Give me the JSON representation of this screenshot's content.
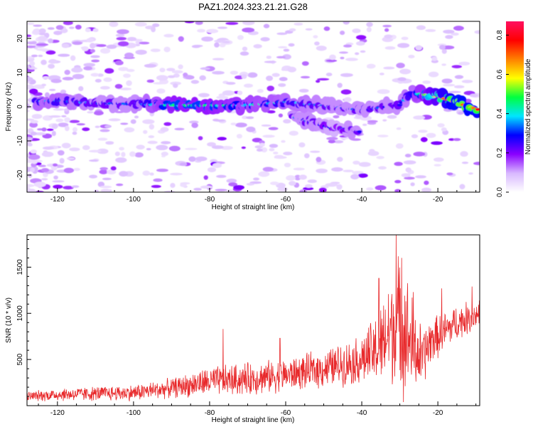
{
  "title": "PAZ1.2024.323.21.21.G28",
  "chart_data": [
    {
      "type": "heatmap",
      "xlabel": "Height of straight line (km)",
      "ylabel": "Frequency (Hz)",
      "xlim": [
        -128,
        -9
      ],
      "ylim": [
        -25,
        25
      ],
      "x_ticks": [
        -120,
        -100,
        -80,
        -60,
        -40,
        -20
      ],
      "y_ticks": [
        -20,
        -10,
        0,
        10,
        20
      ],
      "colorbar": {
        "label": "Normalized spectral amplitude",
        "range": [
          0,
          0.87
        ],
        "ticks": [
          0.0,
          0.2,
          0.4,
          0.6,
          0.8
        ],
        "colors": [
          "#ffffff",
          "#d8b8ff",
          "#8a00ff",
          "#0000ff",
          "#00e5ff",
          "#00ff40",
          "#ffff00",
          "#ff8000",
          "#ff0000",
          "#ff1060"
        ]
      },
      "ridges": [
        {
          "points": [
            [
              -126,
              1.5
            ],
            [
              -120,
              1.8
            ],
            [
              -110,
              1
            ],
            [
              -100,
              0.8
            ],
            [
              -90,
              0.5
            ],
            [
              -80,
              0.3
            ],
            [
              -70,
              0.5
            ],
            [
              -60,
              1.5
            ],
            [
              -50,
              0.2
            ],
            [
              -40,
              -1
            ],
            [
              -30,
              0.5
            ],
            [
              -27,
              4
            ],
            [
              -20,
              3
            ],
            [
              -15,
              1.2
            ],
            [
              -9,
              -1
            ]
          ],
          "amplitudes": [
            0.35,
            0.35,
            0.3,
            0.3,
            0.45,
            0.45,
            0.4,
            0.35,
            0.3,
            0.3,
            0.3,
            0.35,
            0.6,
            0.75,
            0.7
          ]
        },
        {
          "points": [
            [
              -58,
              -3
            ],
            [
              -52,
              -5
            ],
            [
              -47,
              -6.5
            ],
            [
              -43,
              -6.5
            ],
            [
              -40,
              -7.5
            ]
          ],
          "amplitudes": [
            0.3,
            0.3,
            0.25,
            0.3,
            0.3
          ]
        }
      ]
    },
    {
      "type": "line",
      "xlabel": "Height of straight line (km)",
      "ylabel": "SNR (10 * v/v)",
      "xlim": [
        -128,
        -9
      ],
      "ylim": [
        0,
        1850
      ],
      "x_ticks": [
        -120,
        -100,
        -80,
        -60,
        -40,
        -20
      ],
      "y_ticks": [
        500,
        1000,
        1500
      ],
      "line_color": "#e8292b",
      "envelope": {
        "x": [
          -128,
          -120,
          -110,
          -100,
          -90,
          -80,
          -70,
          -60,
          -50,
          -45,
          -40,
          -35,
          -32,
          -30,
          -28,
          -26,
          -24,
          -22,
          -20,
          -15,
          -9
        ],
        "mean": [
          100,
          120,
          130,
          140,
          190,
          260,
          290,
          330,
          400,
          450,
          500,
          620,
          850,
          900,
          750,
          600,
          500,
          700,
          750,
          900,
          1000
        ],
        "amplitude": [
          60,
          80,
          90,
          100,
          120,
          180,
          200,
          200,
          230,
          260,
          300,
          500,
          700,
          850,
          750,
          520,
          380,
          300,
          260,
          220,
          180
        ]
      },
      "spikes": [
        [
          -76.5,
          830
        ],
        [
          -61.5,
          730
        ],
        [
          -35.5,
          1380
        ],
        [
          -31,
          1850
        ],
        [
          -29.5,
          1600
        ],
        [
          -26.5,
          1230
        ],
        [
          -19,
          1270
        ],
        [
          -11,
          1290
        ]
      ]
    }
  ]
}
